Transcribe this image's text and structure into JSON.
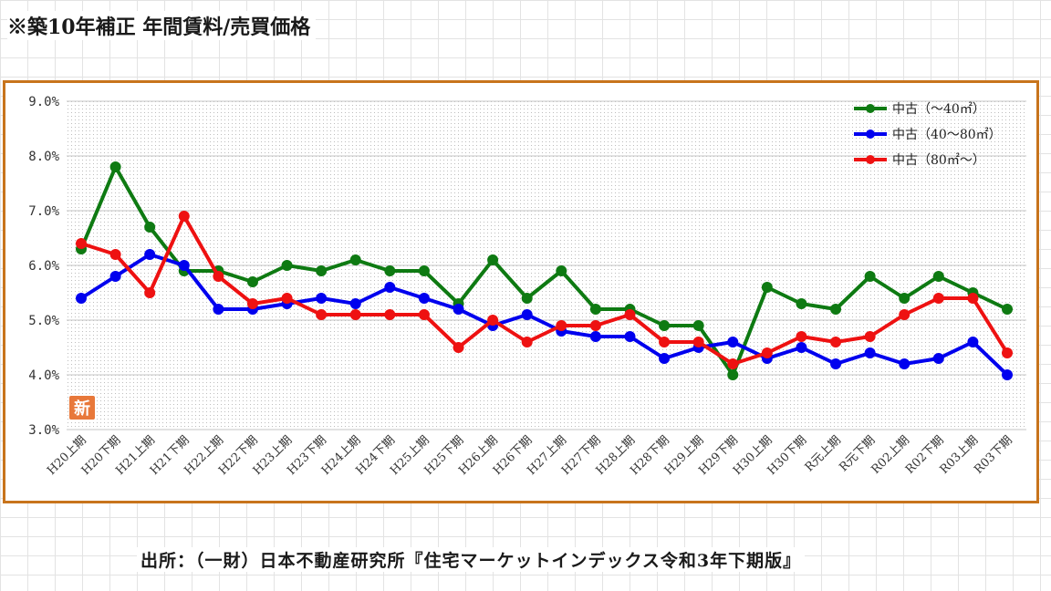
{
  "page": {
    "title": "※築10年補正 年間賃料/売買価格",
    "source": "出所：（一財）日本不動産研究所『住宅マーケットインデックス令和3年下期版』",
    "new_badge": "新"
  },
  "chart_data": {
    "type": "line",
    "title": "",
    "xlabel": "",
    "ylabel": "",
    "ylim": [
      3.0,
      9.0
    ],
    "y_ticks": [
      "3.0%",
      "4.0%",
      "5.0%",
      "6.0%",
      "7.0%",
      "8.0%",
      "9.0%"
    ],
    "grid": true,
    "legend_position": "top-right",
    "categories": [
      "H20上期",
      "H20下期",
      "H21上期",
      "H21下期",
      "H22上期",
      "H22下期",
      "H23上期",
      "H23下期",
      "H24上期",
      "H24下期",
      "H25上期",
      "H25下期",
      "H26上期",
      "H26下期",
      "H27上期",
      "H27下期",
      "H28上期",
      "H28下期",
      "H29上期",
      "H29下期",
      "H30上期",
      "H30下期",
      "R元上期",
      "R元下期",
      "R02上期",
      "R02下期",
      "R03上期",
      "R03下期"
    ],
    "series": [
      {
        "name": "中古（～40㎡）",
        "color": "#0e7a12",
        "values": [
          6.3,
          7.8,
          6.7,
          5.9,
          5.9,
          5.7,
          6.0,
          5.9,
          6.1,
          5.9,
          5.9,
          5.3,
          6.1,
          5.4,
          5.9,
          5.2,
          5.2,
          4.9,
          4.9,
          4.0,
          5.6,
          5.3,
          5.2,
          5.8,
          5.4,
          5.8,
          5.5,
          5.2
        ]
      },
      {
        "name": "中古（40～80㎡）",
        "color": "#0000ee",
        "values": [
          5.4,
          5.8,
          6.2,
          6.0,
          5.2,
          5.2,
          5.3,
          5.4,
          5.3,
          5.6,
          5.4,
          5.2,
          4.9,
          5.1,
          4.8,
          4.7,
          4.7,
          4.3,
          4.5,
          4.6,
          4.3,
          4.5,
          4.2,
          4.4,
          4.2,
          4.3,
          4.6,
          4.0
        ]
      },
      {
        "name": "中古（80㎡～）",
        "color": "#ee1111",
        "values": [
          6.4,
          6.2,
          5.5,
          6.9,
          5.8,
          5.3,
          5.4,
          5.1,
          5.1,
          5.1,
          5.1,
          4.5,
          5.0,
          4.6,
          4.9,
          4.9,
          5.1,
          4.6,
          4.6,
          4.2,
          4.4,
          4.7,
          4.6,
          4.7,
          5.1,
          5.4,
          5.4,
          4.4
        ]
      }
    ]
  }
}
